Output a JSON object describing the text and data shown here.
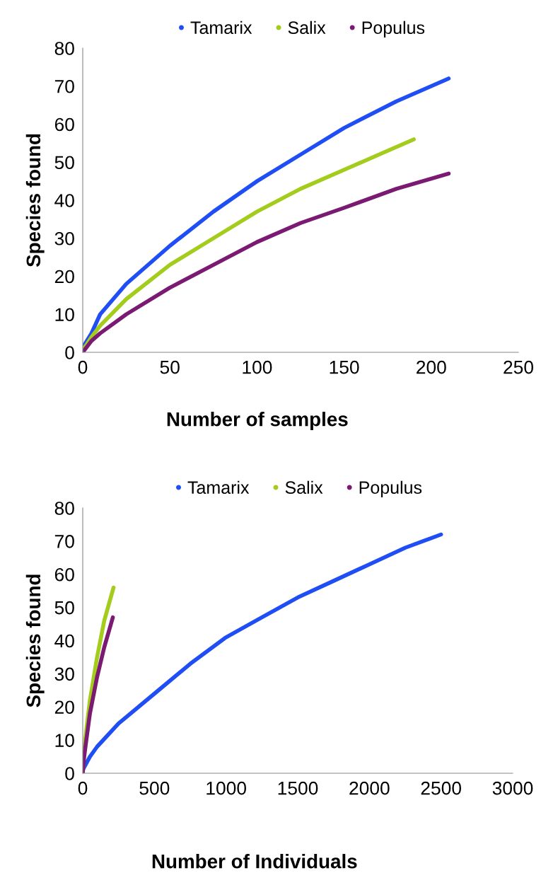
{
  "chart_data": [
    {
      "type": "line",
      "xlabel": "Number of samples",
      "ylabel": "Species found",
      "xlim": [
        0,
        250
      ],
      "xticks": [
        0,
        50,
        100,
        150,
        200,
        250
      ],
      "ylim": [
        0,
        80
      ],
      "yticks": [
        0,
        10,
        20,
        30,
        40,
        50,
        60,
        70,
        80
      ],
      "grid": false,
      "legend": "top",
      "marker": "none",
      "line_style": "solid",
      "series": [
        {
          "name": "Tamarix",
          "color": "#1f4ef5",
          "x": [
            1,
            5,
            10,
            25,
            50,
            75,
            100,
            125,
            150,
            180,
            210
          ],
          "values": [
            2,
            5,
            10,
            18,
            28,
            37,
            45,
            52,
            59,
            66,
            72
          ]
        },
        {
          "name": "Salix",
          "color": "#a3cc1c",
          "x": [
            0,
            5,
            10,
            25,
            50,
            75,
            100,
            125,
            150,
            170,
            190
          ],
          "values": [
            0.5,
            4,
            7,
            14,
            23,
            30,
            37,
            43,
            48,
            52,
            56
          ]
        },
        {
          "name": "Populus",
          "color": "#7a1a72",
          "x": [
            0,
            5,
            10,
            25,
            50,
            75,
            100,
            125,
            150,
            180,
            210
          ],
          "values": [
            0,
            3,
            5,
            10,
            17,
            23,
            29,
            34,
            38,
            43,
            47
          ]
        }
      ]
    },
    {
      "type": "line",
      "xlabel": "Number of Individuals",
      "ylabel": "Species found",
      "xlim": [
        0,
        3000
      ],
      "xticks": [
        0,
        500,
        1000,
        1500,
        2000,
        2500,
        3000
      ],
      "ylim": [
        0,
        80
      ],
      "yticks": [
        0,
        10,
        20,
        30,
        40,
        50,
        60,
        70,
        80
      ],
      "grid": false,
      "legend": "top",
      "marker": "none",
      "line_style": "solid",
      "series": [
        {
          "name": "Tamarix",
          "color": "#1f4ef5",
          "x": [
            0,
            50,
            100,
            250,
            500,
            750,
            1000,
            1250,
            1500,
            1750,
            2000,
            2250,
            2500
          ],
          "values": [
            1,
            5,
            8,
            15,
            24,
            33,
            41,
            47,
            53,
            58,
            63,
            68,
            72
          ]
        },
        {
          "name": "Salix",
          "color": "#a3cc1c",
          "x": [
            0,
            10,
            25,
            50,
            100,
            150,
            215
          ],
          "values": [
            0,
            7,
            13,
            22,
            35,
            46,
            56
          ]
        },
        {
          "name": "Populus",
          "color": "#7a1a72",
          "x": [
            0,
            10,
            25,
            50,
            100,
            150,
            210
          ],
          "values": [
            0,
            5,
            10,
            18,
            29,
            38,
            47
          ]
        }
      ]
    }
  ]
}
